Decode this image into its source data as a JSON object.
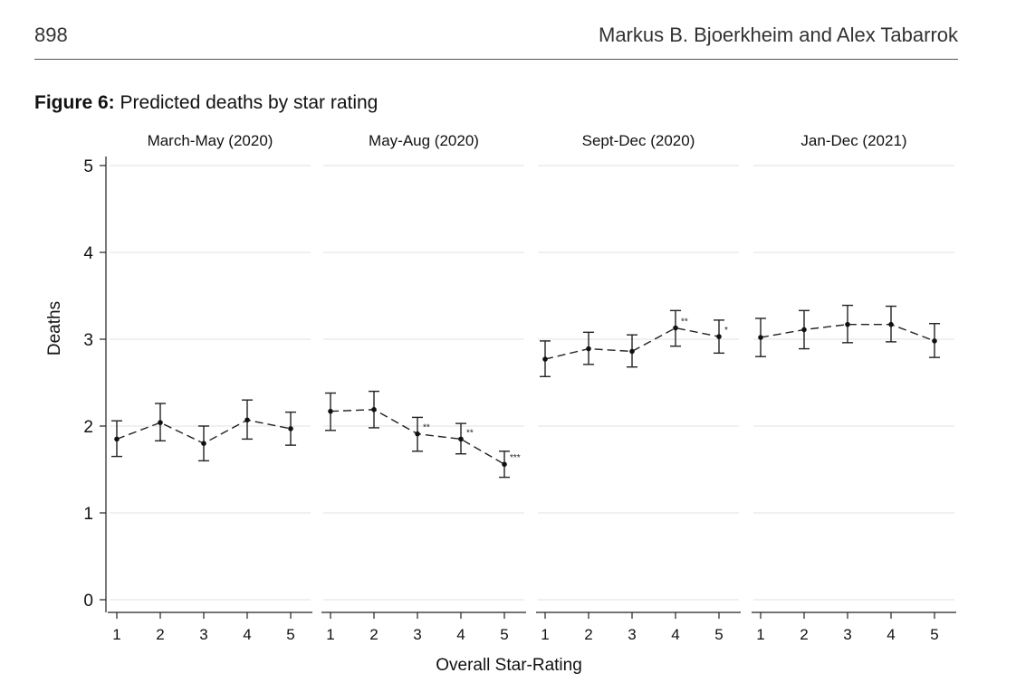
{
  "header": {
    "page_number": "898",
    "authors": "Markus B. Bjoerkheim and Alex Tabarrok"
  },
  "figure": {
    "label": "Figure 6:",
    "title": "Predicted deaths by star rating"
  },
  "chart_data": {
    "type": "scatter",
    "style": "connected points with 95% error bars, dashed connecting line",
    "xlabel": "Overall Star-Rating",
    "ylabel": "Deaths",
    "ylim": [
      0,
      5
    ],
    "yticks": [
      0,
      1,
      2,
      3,
      4,
      5
    ],
    "x": [
      1,
      2,
      3,
      4,
      5
    ],
    "grid": true,
    "panels": [
      {
        "title": "March-May (2020)",
        "y": [
          1.85,
          2.04,
          1.8,
          2.07,
          1.97
        ],
        "ci_low": [
          1.65,
          1.83,
          1.6,
          1.85,
          1.78
        ],
        "ci_high": [
          2.06,
          2.26,
          2.0,
          2.3,
          2.16
        ],
        "significance": [
          "",
          "",
          "",
          "",
          ""
        ]
      },
      {
        "title": "May-Aug (2020)",
        "y": [
          2.17,
          2.19,
          1.91,
          1.85,
          1.56
        ],
        "ci_low": [
          1.95,
          1.98,
          1.71,
          1.68,
          1.41
        ],
        "ci_high": [
          2.38,
          2.4,
          2.1,
          2.03,
          1.71
        ],
        "significance": [
          "",
          "",
          "**",
          "**",
          "***"
        ]
      },
      {
        "title": "Sept-Dec (2020)",
        "y": [
          2.77,
          2.89,
          2.86,
          3.13,
          3.03
        ],
        "ci_low": [
          2.57,
          2.71,
          2.68,
          2.92,
          2.84
        ],
        "ci_high": [
          2.98,
          3.08,
          3.05,
          3.33,
          3.22
        ],
        "significance": [
          "",
          "",
          "",
          "**",
          "*"
        ]
      },
      {
        "title": "Jan-Dec (2021)",
        "y": [
          3.02,
          3.11,
          3.17,
          3.17,
          2.98
        ],
        "ci_low": [
          2.8,
          2.89,
          2.96,
          2.97,
          2.79
        ],
        "ci_high": [
          3.24,
          3.33,
          3.39,
          3.38,
          3.18
        ],
        "significance": [
          "",
          "",
          "",
          "",
          ""
        ]
      }
    ]
  }
}
